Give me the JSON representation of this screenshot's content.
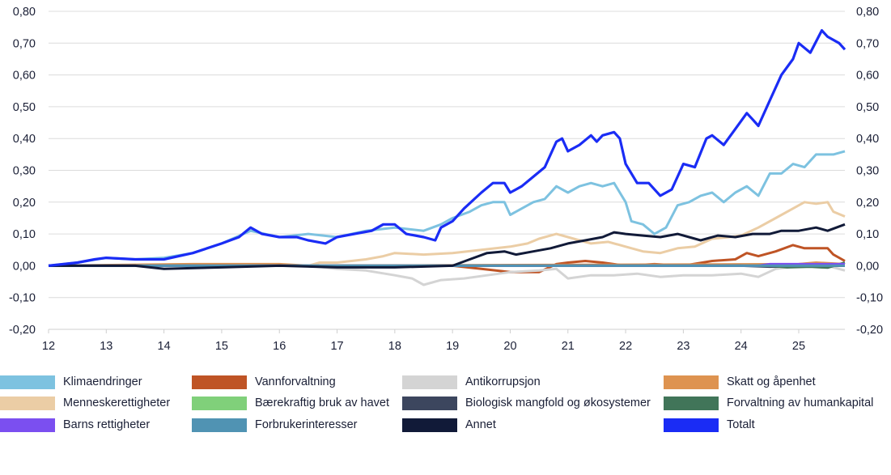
{
  "chart_data": {
    "type": "line",
    "title": "",
    "xlabel": "",
    "ylabel": "",
    "xlim": [
      12,
      25.8
    ],
    "ylim": [
      -0.2,
      0.8
    ],
    "x_ticks": [
      "12",
      "13",
      "14",
      "15",
      "16",
      "17",
      "18",
      "19",
      "20",
      "21",
      "22",
      "23",
      "24",
      "25"
    ],
    "y_ticks": [
      "0,80",
      "0,70",
      "0,60",
      "0,50",
      "0,40",
      "0,30",
      "0,20",
      "0,10",
      "0,00",
      "-0,10",
      "-0,20"
    ],
    "grid": true,
    "legend_position": "bottom",
    "series": [
      {
        "name": "Klimaendringer",
        "color": "#7dc2e0",
        "points": [
          [
            12,
            0
          ],
          [
            12.5,
            0.01
          ],
          [
            13,
            0.025
          ],
          [
            13.5,
            0.02
          ],
          [
            14,
            0.025
          ],
          [
            14.5,
            0.04
          ],
          [
            15,
            0.07
          ],
          [
            15.5,
            0.11
          ],
          [
            16,
            0.09
          ],
          [
            16.5,
            0.1
          ],
          [
            17,
            0.09
          ],
          [
            17.5,
            0.11
          ],
          [
            18,
            0.12
          ],
          [
            18.5,
            0.11
          ],
          [
            18.8,
            0.13
          ],
          [
            19,
            0.15
          ],
          [
            19.3,
            0.17
          ],
          [
            19.5,
            0.19
          ],
          [
            19.7,
            0.2
          ],
          [
            19.9,
            0.2
          ],
          [
            20,
            0.16
          ],
          [
            20.2,
            0.18
          ],
          [
            20.4,
            0.2
          ],
          [
            20.6,
            0.21
          ],
          [
            20.8,
            0.25
          ],
          [
            21,
            0.23
          ],
          [
            21.2,
            0.25
          ],
          [
            21.4,
            0.26
          ],
          [
            21.6,
            0.25
          ],
          [
            21.8,
            0.26
          ],
          [
            22,
            0.2
          ],
          [
            22.1,
            0.14
          ],
          [
            22.3,
            0.13
          ],
          [
            22.5,
            0.1
          ],
          [
            22.7,
            0.12
          ],
          [
            22.9,
            0.19
          ],
          [
            23.1,
            0.2
          ],
          [
            23.3,
            0.22
          ],
          [
            23.5,
            0.23
          ],
          [
            23.7,
            0.2
          ],
          [
            23.9,
            0.23
          ],
          [
            24.1,
            0.25
          ],
          [
            24.3,
            0.22
          ],
          [
            24.5,
            0.29
          ],
          [
            24.7,
            0.29
          ],
          [
            24.9,
            0.32
          ],
          [
            25.1,
            0.31
          ],
          [
            25.3,
            0.35
          ],
          [
            25.6,
            0.35
          ],
          [
            25.8,
            0.36
          ]
        ]
      },
      {
        "name": "Vannforvaltning",
        "color": "#bf5425",
        "points": [
          [
            12,
            0
          ],
          [
            14.5,
            0.003
          ],
          [
            15,
            0
          ],
          [
            19,
            0
          ],
          [
            19.5,
            -0.01
          ],
          [
            20,
            -0.02
          ],
          [
            20.5,
            -0.02
          ],
          [
            20.8,
            0.005
          ],
          [
            21,
            0.01
          ],
          [
            21.3,
            0.015
          ],
          [
            21.6,
            0.01
          ],
          [
            22,
            0
          ],
          [
            22.5,
            0.005
          ],
          [
            23,
            0
          ],
          [
            23.5,
            0.015
          ],
          [
            23.9,
            0.02
          ],
          [
            24.1,
            0.04
          ],
          [
            24.3,
            0.03
          ],
          [
            24.6,
            0.045
          ],
          [
            24.9,
            0.065
          ],
          [
            25.1,
            0.055
          ],
          [
            25.5,
            0.055
          ],
          [
            25.6,
            0.035
          ],
          [
            25.8,
            0.015
          ]
        ]
      },
      {
        "name": "Antikorrupsjon",
        "color": "#d4d4d4",
        "points": [
          [
            12,
            0
          ],
          [
            16.5,
            0
          ],
          [
            17,
            -0.01
          ],
          [
            17.5,
            -0.015
          ],
          [
            18,
            -0.03
          ],
          [
            18.3,
            -0.04
          ],
          [
            18.5,
            -0.06
          ],
          [
            18.8,
            -0.045
          ],
          [
            19.2,
            -0.04
          ],
          [
            19.6,
            -0.03
          ],
          [
            20,
            -0.02
          ],
          [
            20.5,
            -0.015
          ],
          [
            20.8,
            -0.01
          ],
          [
            21,
            -0.04
          ],
          [
            21.4,
            -0.03
          ],
          [
            21.8,
            -0.03
          ],
          [
            22.2,
            -0.025
          ],
          [
            22.6,
            -0.035
          ],
          [
            23,
            -0.03
          ],
          [
            23.5,
            -0.03
          ],
          [
            24,
            -0.025
          ],
          [
            24.3,
            -0.035
          ],
          [
            24.6,
            -0.01
          ],
          [
            25,
            0
          ],
          [
            25.5,
            0
          ],
          [
            25.8,
            -0.015
          ]
        ]
      },
      {
        "name": "Skatt og åpenhet",
        "color": "#de9350",
        "points": [
          [
            12,
            0
          ],
          [
            14.5,
            0.005
          ],
          [
            16,
            0.005
          ],
          [
            16.5,
            0
          ],
          [
            25,
            0.005
          ],
          [
            25.3,
            0.01
          ],
          [
            25.8,
            0.005
          ]
        ]
      },
      {
        "name": "Menneskerettigheter",
        "color": "#ebcda5",
        "points": [
          [
            12,
            0
          ],
          [
            16.5,
            0
          ],
          [
            16.7,
            0.01
          ],
          [
            17,
            0.01
          ],
          [
            17.5,
            0.02
          ],
          [
            17.8,
            0.03
          ],
          [
            18,
            0.04
          ],
          [
            18.5,
            0.035
          ],
          [
            19,
            0.04
          ],
          [
            19.5,
            0.05
          ],
          [
            20,
            0.06
          ],
          [
            20.3,
            0.07
          ],
          [
            20.5,
            0.085
          ],
          [
            20.8,
            0.1
          ],
          [
            21,
            0.09
          ],
          [
            21.2,
            0.08
          ],
          [
            21.4,
            0.07
          ],
          [
            21.7,
            0.075
          ],
          [
            22,
            0.06
          ],
          [
            22.3,
            0.045
          ],
          [
            22.6,
            0.04
          ],
          [
            22.9,
            0.055
          ],
          [
            23.2,
            0.06
          ],
          [
            23.5,
            0.085
          ],
          [
            23.8,
            0.09
          ],
          [
            24,
            0.095
          ],
          [
            24.3,
            0.12
          ],
          [
            24.6,
            0.15
          ],
          [
            24.9,
            0.18
          ],
          [
            25.1,
            0.2
          ],
          [
            25.3,
            0.195
          ],
          [
            25.5,
            0.2
          ],
          [
            25.6,
            0.17
          ],
          [
            25.8,
            0.155
          ]
        ]
      },
      {
        "name": "Bærekraftig bruk av havet",
        "color": "#80d07a",
        "points": [
          [
            12,
            0
          ],
          [
            25.8,
            0
          ]
        ]
      },
      {
        "name": "Biologisk mangfold og økosystemer",
        "color": "#3c465e",
        "points": [
          [
            12,
            0
          ],
          [
            24,
            0
          ],
          [
            24.5,
            -0.003
          ],
          [
            25.8,
            0
          ]
        ]
      },
      {
        "name": "Forvaltning av humankapital",
        "color": "#417559",
        "points": [
          [
            12,
            0
          ],
          [
            24.5,
            0
          ],
          [
            24.8,
            -0.005
          ],
          [
            25.2,
            -0.003
          ],
          [
            25.5,
            -0.006
          ],
          [
            25.8,
            0.01
          ]
        ]
      },
      {
        "name": "Barns rettigheter",
        "color": "#7b4ff0",
        "points": [
          [
            12,
            0
          ],
          [
            24.3,
            0
          ],
          [
            24.5,
            0.005
          ],
          [
            25.8,
            0.005
          ]
        ]
      },
      {
        "name": "Forbrukerinteresser",
        "color": "#5093b3",
        "points": [
          [
            12,
            0
          ],
          [
            25.8,
            0
          ]
        ]
      },
      {
        "name": "Annet",
        "color": "#111a38",
        "points": [
          [
            12,
            0
          ],
          [
            13.5,
            0
          ],
          [
            14,
            -0.01
          ],
          [
            15,
            -0.005
          ],
          [
            16,
            0
          ],
          [
            17,
            -0.005
          ],
          [
            18,
            -0.005
          ],
          [
            19,
            0
          ],
          [
            19.3,
            0.02
          ],
          [
            19.6,
            0.04
          ],
          [
            19.9,
            0.045
          ],
          [
            20.1,
            0.035
          ],
          [
            20.4,
            0.045
          ],
          [
            20.7,
            0.055
          ],
          [
            21,
            0.07
          ],
          [
            21.3,
            0.08
          ],
          [
            21.6,
            0.09
          ],
          [
            21.8,
            0.105
          ],
          [
            22,
            0.1
          ],
          [
            22.3,
            0.095
          ],
          [
            22.6,
            0.09
          ],
          [
            22.9,
            0.1
          ],
          [
            23.1,
            0.09
          ],
          [
            23.3,
            0.08
          ],
          [
            23.6,
            0.095
          ],
          [
            23.9,
            0.09
          ],
          [
            24.2,
            0.1
          ],
          [
            24.5,
            0.1
          ],
          [
            24.7,
            0.11
          ],
          [
            25,
            0.11
          ],
          [
            25.3,
            0.12
          ],
          [
            25.5,
            0.11
          ],
          [
            25.8,
            0.13
          ]
        ]
      },
      {
        "name": "Totalt",
        "color": "#1a2cf5",
        "points": [
          [
            12,
            0
          ],
          [
            12.5,
            0.01
          ],
          [
            12.8,
            0.02
          ],
          [
            13,
            0.025
          ],
          [
            13.5,
            0.02
          ],
          [
            14,
            0.02
          ],
          [
            14.5,
            0.04
          ],
          [
            15,
            0.07
          ],
          [
            15.3,
            0.09
          ],
          [
            15.5,
            0.12
          ],
          [
            15.7,
            0.1
          ],
          [
            16,
            0.09
          ],
          [
            16.3,
            0.09
          ],
          [
            16.5,
            0.08
          ],
          [
            16.8,
            0.07
          ],
          [
            17,
            0.09
          ],
          [
            17.3,
            0.1
          ],
          [
            17.6,
            0.11
          ],
          [
            17.8,
            0.13
          ],
          [
            18,
            0.13
          ],
          [
            18.2,
            0.1
          ],
          [
            18.5,
            0.09
          ],
          [
            18.7,
            0.08
          ],
          [
            18.8,
            0.12
          ],
          [
            19,
            0.14
          ],
          [
            19.2,
            0.18
          ],
          [
            19.5,
            0.23
          ],
          [
            19.7,
            0.26
          ],
          [
            19.9,
            0.26
          ],
          [
            20,
            0.23
          ],
          [
            20.2,
            0.25
          ],
          [
            20.4,
            0.28
          ],
          [
            20.6,
            0.31
          ],
          [
            20.8,
            0.39
          ],
          [
            20.9,
            0.4
          ],
          [
            21,
            0.36
          ],
          [
            21.2,
            0.38
          ],
          [
            21.4,
            0.41
          ],
          [
            21.5,
            0.39
          ],
          [
            21.6,
            0.41
          ],
          [
            21.8,
            0.42
          ],
          [
            21.9,
            0.4
          ],
          [
            22,
            0.32
          ],
          [
            22.2,
            0.26
          ],
          [
            22.4,
            0.26
          ],
          [
            22.6,
            0.22
          ],
          [
            22.8,
            0.24
          ],
          [
            23,
            0.32
          ],
          [
            23.2,
            0.31
          ],
          [
            23.4,
            0.4
          ],
          [
            23.5,
            0.41
          ],
          [
            23.7,
            0.38
          ],
          [
            23.9,
            0.43
          ],
          [
            24.1,
            0.48
          ],
          [
            24.2,
            0.46
          ],
          [
            24.3,
            0.44
          ],
          [
            24.5,
            0.52
          ],
          [
            24.7,
            0.6
          ],
          [
            24.9,
            0.65
          ],
          [
            25,
            0.7
          ],
          [
            25.2,
            0.67
          ],
          [
            25.4,
            0.74
          ],
          [
            25.5,
            0.72
          ],
          [
            25.7,
            0.7
          ],
          [
            25.8,
            0.68
          ]
        ]
      }
    ]
  }
}
